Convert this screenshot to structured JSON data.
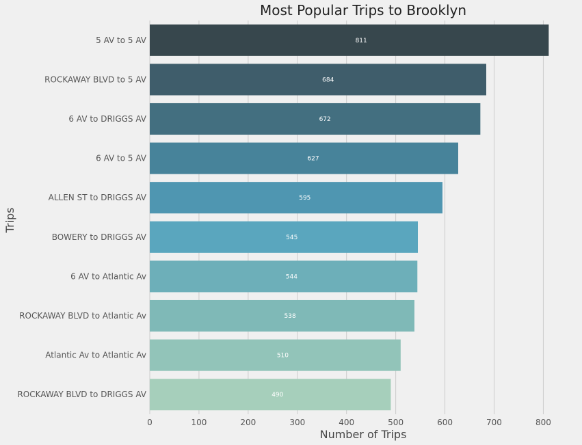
{
  "chart_data": {
    "type": "bar",
    "orientation": "horizontal",
    "title": "Most Popular Trips to Brooklyn",
    "xlabel": "Number of Trips",
    "ylabel": "Trips",
    "xlim": [
      0,
      830
    ],
    "xticks": [
      0,
      100,
      200,
      300,
      400,
      500,
      600,
      700,
      800
    ],
    "grid": "vertical",
    "categories": [
      "5 AV to 5 AV",
      "ROCKAWAY BLVD to 5 AV",
      "6 AV to DRIGGS AV",
      "6 AV to 5 AV",
      "ALLEN ST to DRIGGS AV",
      "BOWERY to DRIGGS AV",
      "6 AV to Atlantic Av",
      "ROCKAWAY BLVD to Atlantic Av",
      "Atlantic Av to Atlantic Av",
      "ROCKAWAY BLVD to DRIGGS AV"
    ],
    "values": [
      811,
      684,
      672,
      627,
      595,
      545,
      544,
      538,
      510,
      490
    ],
    "colors": [
      "#37474d",
      "#3f5d6b",
      "#436f80",
      "#47839a",
      "#4f96b1",
      "#5aa6be",
      "#6dafb9",
      "#7fb9b7",
      "#92c4b9",
      "#a6cfbb"
    ]
  }
}
